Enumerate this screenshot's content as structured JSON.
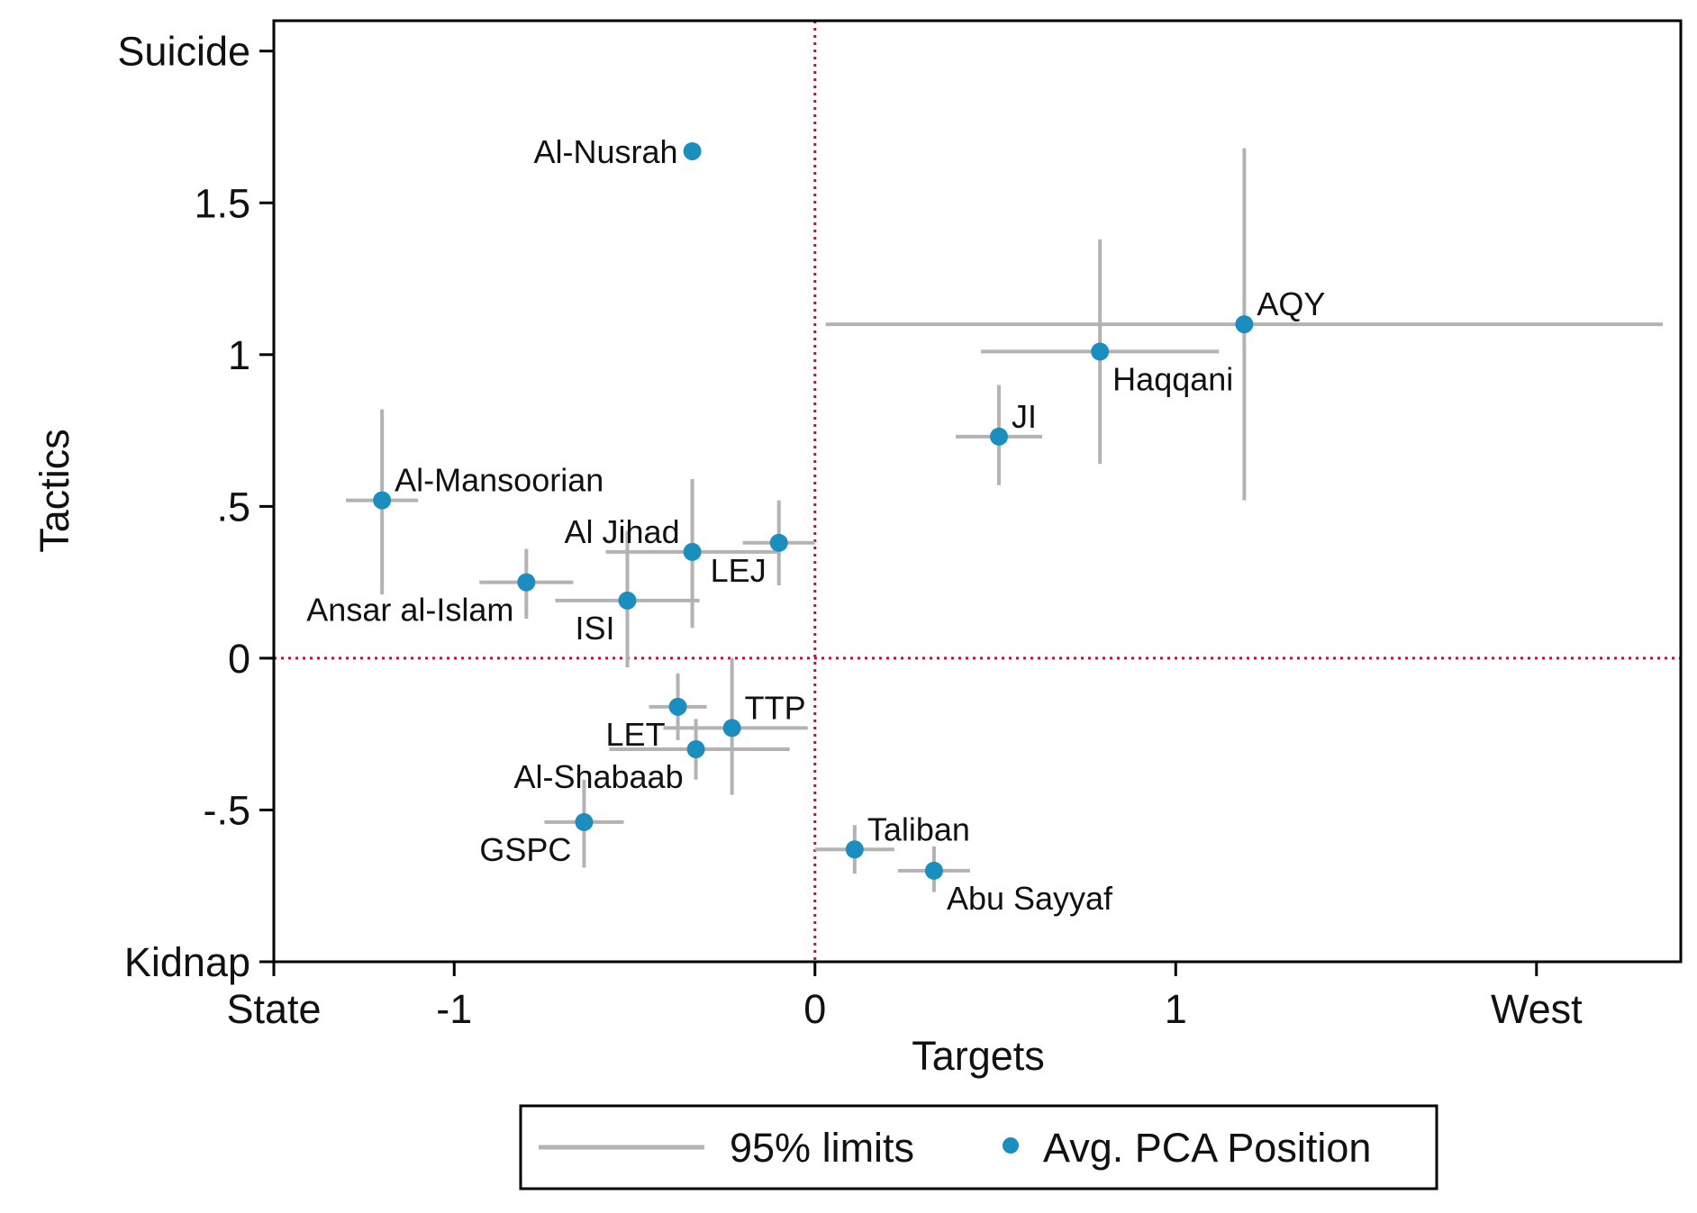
{
  "colors": {
    "point": "#1a8fbf",
    "error_bar": "#b3b3b3",
    "reference_line": "#c8102e",
    "axis": "#000000",
    "text": "#111111"
  },
  "chart_data": {
    "type": "scatter",
    "title": "",
    "xlabel": "Targets",
    "ylabel": "Tactics",
    "xlim": [
      -1.5,
      2.4
    ],
    "ylim": [
      -1.0,
      2.1
    ],
    "x_ticks": [
      {
        "value": -1.5,
        "label": "State"
      },
      {
        "value": -1.0,
        "label": "-1"
      },
      {
        "value": 0.0,
        "label": "0"
      },
      {
        "value": 1.0,
        "label": "1"
      },
      {
        "value": 2.0,
        "label": "West"
      }
    ],
    "y_ticks": [
      {
        "value": -1.0,
        "label": "Kidnap"
      },
      {
        "value": -0.5,
        "label": "-.5"
      },
      {
        "value": 0.0,
        "label": "0"
      },
      {
        "value": 0.5,
        "label": ".5"
      },
      {
        "value": 1.0,
        "label": "1"
      },
      {
        "value": 1.5,
        "label": "1.5"
      },
      {
        "value": 2.0,
        "label": "Suicide"
      }
    ],
    "reference_lines": {
      "x": 0,
      "y": 0,
      "style": "dotted"
    },
    "legend": {
      "position": "bottom",
      "entries": [
        {
          "label": "95% limits",
          "marker": "line"
        },
        {
          "label": "Avg. PCA Position",
          "marker": "dot"
        }
      ]
    },
    "grid": false,
    "points": [
      {
        "label": "Al-Nusrah",
        "x": -0.34,
        "y": 1.67,
        "anchor": "left"
      },
      {
        "label": "AQY",
        "x": 1.19,
        "y": 1.1,
        "x_ci": [
          0.03,
          2.35
        ],
        "y_ci": [
          0.52,
          1.68
        ],
        "anchor": "upper-right"
      },
      {
        "label": "Haqqani",
        "x": 0.79,
        "y": 1.01,
        "x_ci": [
          0.46,
          1.12
        ],
        "y_ci": [
          0.64,
          1.38
        ],
        "anchor": "lower-right"
      },
      {
        "label": "JI",
        "x": 0.51,
        "y": 0.73,
        "x_ci": [
          0.39,
          0.63
        ],
        "y_ci": [
          0.57,
          0.9
        ],
        "anchor": "upper-right"
      },
      {
        "label": "Al-Mansoorian",
        "x": -1.2,
        "y": 0.52,
        "x_ci": [
          -1.3,
          -1.1
        ],
        "y_ci": [
          0.21,
          0.82
        ],
        "anchor": "upper-right"
      },
      {
        "label": "Al Jihad",
        "x": -0.34,
        "y": 0.35,
        "x_ci": [
          -0.58,
          -0.1
        ],
        "y_ci": [
          0.1,
          0.59
        ],
        "anchor": "upper-left"
      },
      {
        "label": "LEJ",
        "x": -0.1,
        "y": 0.38,
        "x_ci": [
          -0.2,
          0.0
        ],
        "y_ci": [
          0.24,
          0.52
        ],
        "anchor": "lower-left"
      },
      {
        "label": "Ansar al-Islam",
        "x": -0.8,
        "y": 0.25,
        "x_ci": [
          -0.93,
          -0.67
        ],
        "y_ci": [
          0.13,
          0.36
        ],
        "anchor": "lower-left"
      },
      {
        "label": "ISI",
        "x": -0.52,
        "y": 0.19,
        "x_ci": [
          -0.72,
          -0.32
        ],
        "y_ci": [
          -0.03,
          0.42
        ],
        "anchor": "lower-left"
      },
      {
        "label": "LET",
        "x": -0.38,
        "y": -0.16,
        "x_ci": [
          -0.46,
          -0.3
        ],
        "y_ci": [
          -0.27,
          -0.05
        ],
        "anchor": "lower-left"
      },
      {
        "label": "TTP",
        "x": -0.23,
        "y": -0.23,
        "x_ci": [
          -0.42,
          -0.02
        ],
        "y_ci": [
          -0.45,
          0.0
        ],
        "anchor": "upper-right"
      },
      {
        "label": "Al-Shabaab",
        "x": -0.33,
        "y": -0.3,
        "x_ci": [
          -0.57,
          -0.07
        ],
        "y_ci": [
          -0.4,
          -0.2
        ],
        "anchor": "lower-left"
      },
      {
        "label": "GSPC",
        "x": -0.64,
        "y": -0.54,
        "x_ci": [
          -0.75,
          -0.53
        ],
        "y_ci": [
          -0.69,
          -0.4
        ],
        "anchor": "lower-left"
      },
      {
        "label": "Taliban",
        "x": 0.11,
        "y": -0.63,
        "x_ci": [
          0.0,
          0.22
        ],
        "y_ci": [
          -0.71,
          -0.55
        ],
        "anchor": "upper-right"
      },
      {
        "label": "Abu Sayyaf",
        "x": 0.33,
        "y": -0.7,
        "x_ci": [
          0.23,
          0.43
        ],
        "y_ci": [
          -0.77,
          -0.62
        ],
        "anchor": "lower-right"
      }
    ]
  }
}
